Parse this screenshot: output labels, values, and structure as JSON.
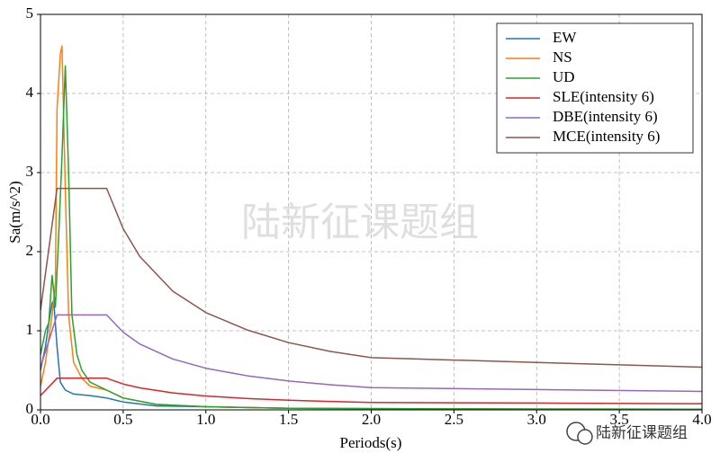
{
  "chart_data": {
    "type": "line",
    "xlabel": "Periods(s)",
    "ylabel": "Sa(m/s^2)",
    "xlim": [
      0,
      4
    ],
    "ylim": [
      0,
      5
    ],
    "xticks": [
      {
        "value": 0,
        "label": "0.0"
      },
      0.5,
      {
        "value": 1,
        "label": "1.0"
      },
      1.5,
      {
        "value": 2,
        "label": "2.0"
      },
      2.5,
      {
        "value": 3,
        "label": "3.0"
      },
      3.5,
      {
        "value": 4,
        "label": "4.0"
      }
    ],
    "yticks": [
      0,
      1,
      2,
      3,
      4,
      5
    ],
    "grid": true,
    "legend": "upper right",
    "watermark": "陆新征课题组",
    "footer_watermark": "陆新征课题组",
    "series": [
      {
        "name": "EW",
        "color": "#1f77b4",
        "x": [
          0,
          0.03,
          0.05,
          0.07,
          0.08,
          0.1,
          0.12,
          0.15,
          0.2,
          0.3,
          0.4,
          0.5,
          0.7,
          1.0,
          1.5,
          2.0,
          3.0,
          4.0
        ],
        "values": [
          0.5,
          0.8,
          1.1,
          1.35,
          1.38,
          0.8,
          0.35,
          0.25,
          0.2,
          0.18,
          0.15,
          0.1,
          0.05,
          0.04,
          0.02,
          0.015,
          0.01,
          0.008
        ]
      },
      {
        "name": "NS",
        "color": "#ff7f0e",
        "x": [
          0,
          0.03,
          0.05,
          0.07,
          0.09,
          0.1,
          0.12,
          0.13,
          0.15,
          0.17,
          0.2,
          0.25,
          0.3,
          0.4,
          0.5,
          0.7,
          1.0,
          1.5,
          2.0,
          3.0,
          4.0
        ],
        "values": [
          0.3,
          0.6,
          0.9,
          1.2,
          1.6,
          3.8,
          4.5,
          4.6,
          2.8,
          1.2,
          0.6,
          0.4,
          0.3,
          0.25,
          0.15,
          0.07,
          0.04,
          0.02,
          0.015,
          0.01,
          0.008
        ]
      },
      {
        "name": "UD",
        "color": "#2ca02c",
        "x": [
          0,
          0.03,
          0.05,
          0.07,
          0.09,
          0.11,
          0.13,
          0.15,
          0.17,
          0.19,
          0.22,
          0.25,
          0.3,
          0.4,
          0.5,
          0.7,
          1.0,
          1.5,
          2.0,
          3.0,
          4.0
        ],
        "values": [
          0.7,
          1.0,
          1.1,
          1.7,
          1.3,
          2.2,
          3.2,
          4.35,
          3.0,
          1.2,
          0.7,
          0.5,
          0.35,
          0.25,
          0.15,
          0.07,
          0.04,
          0.02,
          0.015,
          0.01,
          0.008
        ]
      },
      {
        "name": "SLE(intensity 6)",
        "color": "#d62728",
        "x": [
          0,
          0.1,
          0.4,
          0.5,
          0.6,
          0.8,
          1.0,
          1.25,
          1.5,
          1.75,
          2.0,
          3.0,
          4.0
        ],
        "values": [
          0.18,
          0.4,
          0.4,
          0.327,
          0.278,
          0.214,
          0.175,
          0.144,
          0.122,
          0.106,
          0.094,
          0.086,
          0.078
        ]
      },
      {
        "name": "DBE(intensity 6)",
        "color": "#9467bd",
        "x": [
          0,
          0.1,
          0.4,
          0.5,
          0.6,
          0.8,
          1.0,
          1.25,
          1.5,
          1.75,
          2.0,
          3.0,
          4.0
        ],
        "values": [
          0.54,
          1.2,
          1.2,
          0.982,
          0.833,
          0.643,
          0.526,
          0.431,
          0.365,
          0.318,
          0.281,
          0.257,
          0.233
        ]
      },
      {
        "name": "MCE(intensity 6)",
        "color": "#8c564b",
        "x": [
          0,
          0.1,
          0.4,
          0.5,
          0.6,
          0.8,
          1.0,
          1.25,
          1.5,
          1.75,
          2.0,
          3.0,
          4.0
        ],
        "values": [
          1.26,
          2.8,
          2.8,
          2.29,
          1.94,
          1.5,
          1.23,
          1.01,
          0.85,
          0.74,
          0.66,
          0.6,
          0.54
        ]
      }
    ]
  }
}
